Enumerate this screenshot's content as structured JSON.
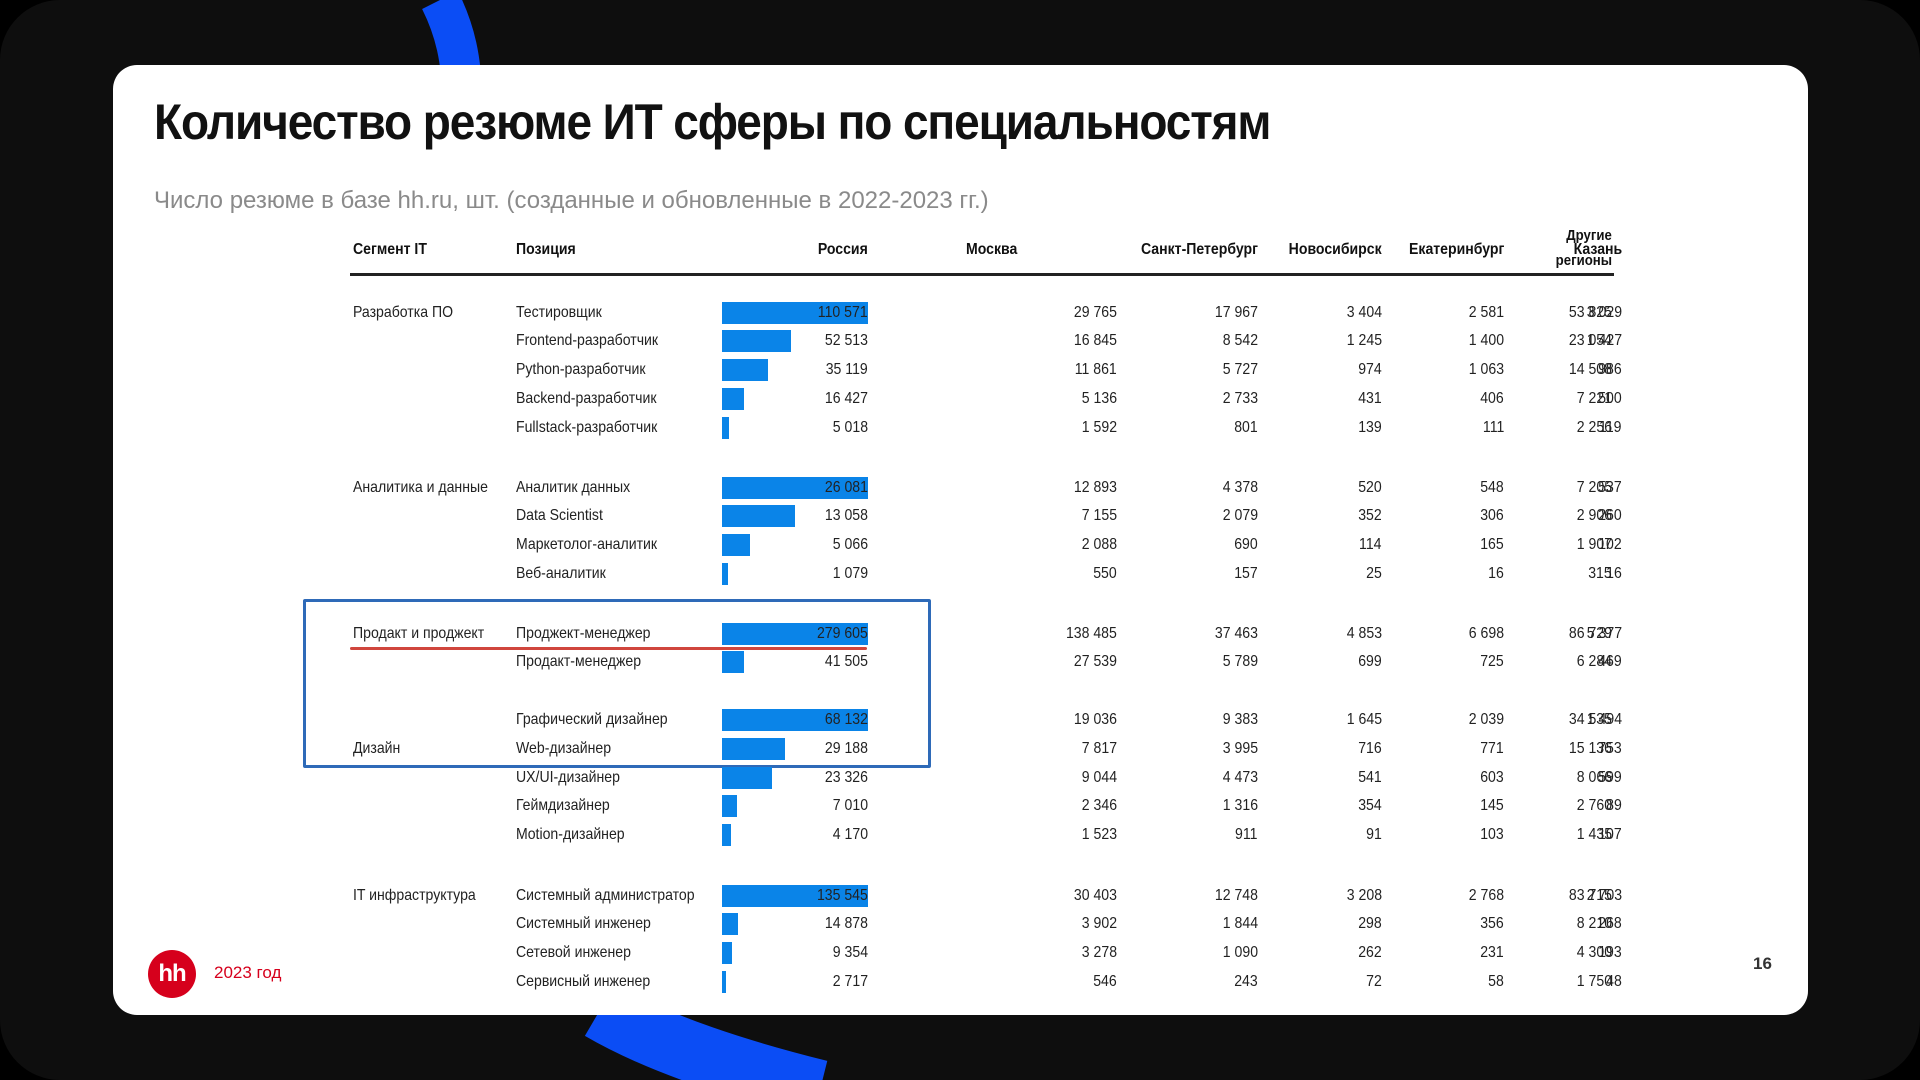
{
  "slide": {
    "title": "Количество резюме ИТ сферы по специальностям",
    "subtitle": "Число резюме в базе hh.ru, шт. (созданные и обновленные в 2022-2023 гг.)",
    "footer_year": "2023 год",
    "logo_text": "hh",
    "page_number": "16"
  },
  "colors": {
    "bar": "#0a84e8",
    "highlight_box": "#2e6ab8",
    "underline": "#d0463d",
    "brand": "#d6001c",
    "background": "#0e0e0e",
    "arc": "#0b4df5"
  },
  "table": {
    "headers": {
      "segment": "Сегмент IT",
      "position": "Позиция",
      "russia": "Россия",
      "moscow": "Москва",
      "spb": "Санкт-Петербург",
      "novosibirsk": "Новосибирск",
      "ekaterinburg": "Екатеринбург",
      "kazan": "Казань",
      "other_line1": "Другие",
      "other_line2": "регионы"
    },
    "rows": [
      {
        "segment": "Разработка ПО",
        "position": "Тестировщик",
        "russia": "110 571",
        "moscow": "29 765",
        "spb": "17 967",
        "novosibirsk": "3 404",
        "ekaterinburg": "2 581",
        "kazan": "3 029",
        "other": "53 825"
      },
      {
        "segment": "",
        "position": "Frontend-разработчик",
        "russia": "52 513",
        "moscow": "16 845",
        "spb": "8 542",
        "novosibirsk": "1 245",
        "ekaterinburg": "1 400",
        "kazan": "1 427",
        "other": "23 054"
      },
      {
        "segment": "",
        "position": "Python-разработчик",
        "russia": "35 119",
        "moscow": "11 861",
        "spb": "5 727",
        "novosibirsk": "974",
        "ekaterinburg": "1 063",
        "kazan": "986",
        "other": "14 508"
      },
      {
        "segment": "",
        "position": "Backend-разработчик",
        "russia": "16 427",
        "moscow": "5 136",
        "spb": "2 733",
        "novosibirsk": "431",
        "ekaterinburg": "406",
        "kazan": "500",
        "other": "7 221"
      },
      {
        "segment": "",
        "position": "Fullstack-разработчик",
        "russia": "5 018",
        "moscow": "1 592",
        "spb": "801",
        "novosibirsk": "139",
        "ekaterinburg": "111",
        "kazan": "119",
        "other": "2 256"
      },
      {
        "segment": "Аналитика и данные",
        "position": "Аналитик данных",
        "russia": "26 081",
        "moscow": "12 893",
        "spb": "4 378",
        "novosibirsk": "520",
        "ekaterinburg": "548",
        "kazan": "537",
        "other": "7 205"
      },
      {
        "segment": "",
        "position": "Data Scientist",
        "russia": "13 058",
        "moscow": "7 155",
        "spb": "2 079",
        "novosibirsk": "352",
        "ekaterinburg": "306",
        "kazan": "260",
        "other": "2 906"
      },
      {
        "segment": "",
        "position": "Маркетолог-аналитик",
        "russia": "5 066",
        "moscow": "2 088",
        "spb": "690",
        "novosibirsk": "114",
        "ekaterinburg": "165",
        "kazan": "102",
        "other": "1 907"
      },
      {
        "segment": "",
        "position": "Веб-аналитик",
        "russia": "1 079",
        "moscow": "550",
        "spb": "157",
        "novosibirsk": "25",
        "ekaterinburg": "16",
        "kazan": "16",
        "other": "315"
      },
      {
        "segment": "Продакт и проджект",
        "position": "Проджект-менеджер",
        "russia": "279 605",
        "moscow": "138 485",
        "spb": "37 463",
        "novosibirsk": "4 853",
        "ekaterinburg": "6 698",
        "kazan": "5 377",
        "other": "86 729"
      },
      {
        "segment": "",
        "position": "Продакт-менеджер",
        "russia": "41 505",
        "moscow": "27 539",
        "spb": "5 789",
        "novosibirsk": "699",
        "ekaterinburg": "725",
        "kazan": "469",
        "other": "6 284"
      },
      {
        "segment": "",
        "position": "Графический дизайнер",
        "russia": "68 132",
        "moscow": "19 036",
        "spb": "9 383",
        "novosibirsk": "1 645",
        "ekaterinburg": "2 039",
        "kazan": "1 494",
        "other": "34 535"
      },
      {
        "segment": "Дизайн",
        "position": "Web-дизайнер",
        "russia": "29 188",
        "moscow": "7 817",
        "spb": "3 995",
        "novosibirsk": "716",
        "ekaterinburg": "771",
        "kazan": "753",
        "other": "15 136"
      },
      {
        "segment": "",
        "position": "UX/UI-дизайнер",
        "russia": "23 326",
        "moscow": "9 044",
        "spb": "4 473",
        "novosibirsk": "541",
        "ekaterinburg": "603",
        "kazan": "599",
        "other": "8 066"
      },
      {
        "segment": "",
        "position": "Геймдизайнер",
        "russia": "7 010",
        "moscow": "2 346",
        "spb": "1 316",
        "novosibirsk": "354",
        "ekaterinburg": "145",
        "kazan": "89",
        "other": "2 760"
      },
      {
        "segment": "",
        "position": "Motion-дизайнер",
        "russia": "4 170",
        "moscow": "1 523",
        "spb": "911",
        "novosibirsk": "91",
        "ekaterinburg": "103",
        "kazan": "107",
        "other": "1 435"
      },
      {
        "segment": "IT инфраструктура",
        "position": "Системный администратор",
        "russia": "135 545",
        "moscow": "30 403",
        "spb": "12 748",
        "novosibirsk": "3 208",
        "ekaterinburg": "2 768",
        "kazan": "2 703",
        "other": "83 715"
      },
      {
        "segment": "",
        "position": "Системный инженер",
        "russia": "14 878",
        "moscow": "3 902",
        "spb": "1 844",
        "novosibirsk": "298",
        "ekaterinburg": "356",
        "kazan": "268",
        "other": "8 210"
      },
      {
        "segment": "",
        "position": "Сетевой инженер",
        "russia": "9 354",
        "moscow": "3 278",
        "spb": "1 090",
        "novosibirsk": "262",
        "ekaterinburg": "231",
        "kazan": "193",
        "other": "4 300"
      },
      {
        "segment": "",
        "position": "Сервисный инженер",
        "russia": "2 717",
        "moscow": "546",
        "spb": "243",
        "novosibirsk": "72",
        "ekaterinburg": "58",
        "kazan": "48",
        "other": "1 750"
      }
    ]
  },
  "chart_data": {
    "type": "table",
    "title": "Количество резюме ИТ сферы по специальностям",
    "subtitle": "Число резюме в базе hh.ru, шт. (созданные и обновленные в 2022-2023 гг.)",
    "columns": [
      "Сегмент IT",
      "Позиция",
      "Россия",
      "Москва",
      "Санкт-Петербург",
      "Новосибирск",
      "Екатеринбург",
      "Казань",
      "Другие регионы"
    ],
    "in_cell_bars": "Россия column, bars scaled within each segment (max per segment = full width)",
    "segments": [
      {
        "name": "Разработка ПО",
        "rows": [
          [
            "Тестировщик",
            110571,
            29765,
            17967,
            3404,
            2581,
            3029,
            53825
          ],
          [
            "Frontend-разработчик",
            52513,
            16845,
            8542,
            1245,
            1400,
            1427,
            23054
          ],
          [
            "Python-разработчик",
            35119,
            11861,
            5727,
            974,
            1063,
            986,
            14508
          ],
          [
            "Backend-разработчик",
            16427,
            5136,
            2733,
            431,
            406,
            500,
            7221
          ],
          [
            "Fullstack-разработчик",
            5018,
            1592,
            801,
            139,
            111,
            119,
            2256
          ]
        ]
      },
      {
        "name": "Аналитика и данные",
        "rows": [
          [
            "Аналитик данных",
            26081,
            12893,
            4378,
            520,
            548,
            537,
            7205
          ],
          [
            "Data Scientist",
            13058,
            7155,
            2079,
            352,
            306,
            260,
            2906
          ],
          [
            "Маркетолог-аналитик",
            5066,
            2088,
            690,
            114,
            165,
            102,
            1907
          ],
          [
            "Веб-аналитик",
            1079,
            550,
            157,
            25,
            16,
            16,
            315
          ]
        ]
      },
      {
        "name": "Продакт и проджект",
        "highlighted": true,
        "rows": [
          [
            "Проджект-менеджер",
            279605,
            138485,
            37463,
            4853,
            6698,
            5377,
            86729
          ],
          [
            "Продакт-менеджер",
            41505,
            27539,
            5789,
            699,
            725,
            469,
            6284
          ]
        ]
      },
      {
        "name": "Дизайн",
        "rows": [
          [
            "Графический дизайнер",
            68132,
            19036,
            9383,
            1645,
            2039,
            1494,
            34535
          ],
          [
            "Web-дизайнер",
            29188,
            7817,
            3995,
            716,
            771,
            753,
            15136
          ],
          [
            "UX/UI-дизайнер",
            23326,
            9044,
            4473,
            541,
            603,
            599,
            8066
          ],
          [
            "Геймдизайнер",
            7010,
            2346,
            1316,
            354,
            145,
            89,
            2760
          ],
          [
            "Motion-дизайнер",
            4170,
            1523,
            911,
            91,
            103,
            107,
            1435
          ]
        ]
      },
      {
        "name": "IT инфраструктура",
        "rows": [
          [
            "Системный администратор",
            135545,
            30403,
            12748,
            3208,
            2768,
            2703,
            83715
          ],
          [
            "Системный инженер",
            14878,
            3902,
            1844,
            298,
            356,
            268,
            8210
          ],
          [
            "Сетевой инженер",
            9354,
            3278,
            1090,
            262,
            231,
            193,
            4300
          ],
          [
            "Сервисный инженер",
            2717,
            546,
            243,
            72,
            58,
            48,
            1750
          ]
        ]
      }
    ]
  }
}
